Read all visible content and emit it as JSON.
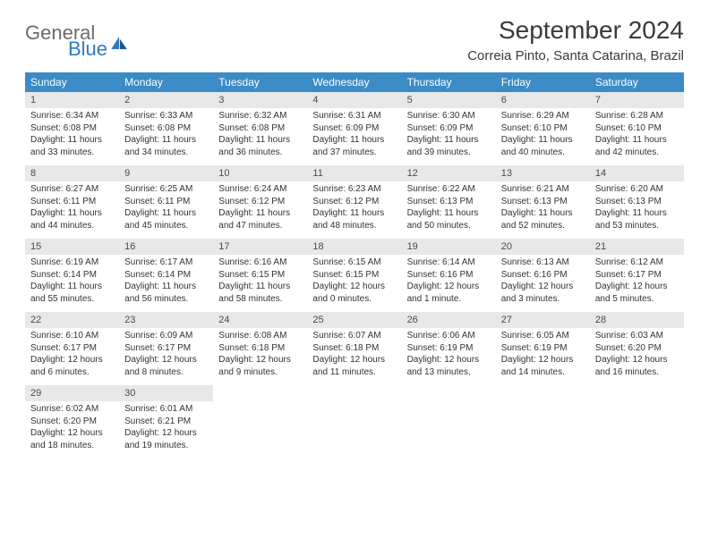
{
  "logo": {
    "word1": "General",
    "word2": "Blue"
  },
  "title": "September 2024",
  "location": "Correia Pinto, Santa Catarina, Brazil",
  "colors": {
    "header_bg": "#3b8bc6",
    "header_text": "#ffffff",
    "daynum_bg": "#e8e8e8",
    "border": "#2d6ea3",
    "logo_gray": "#6b6b6b",
    "logo_blue": "#2d7cc0"
  },
  "dayNames": [
    "Sunday",
    "Monday",
    "Tuesday",
    "Wednesday",
    "Thursday",
    "Friday",
    "Saturday"
  ],
  "weeks": [
    [
      {
        "day": "1",
        "sunrise": "6:34 AM",
        "sunset": "6:08 PM",
        "dl_h": "11",
        "dl_m": "33"
      },
      {
        "day": "2",
        "sunrise": "6:33 AM",
        "sunset": "6:08 PM",
        "dl_h": "11",
        "dl_m": "34"
      },
      {
        "day": "3",
        "sunrise": "6:32 AM",
        "sunset": "6:08 PM",
        "dl_h": "11",
        "dl_m": "36"
      },
      {
        "day": "4",
        "sunrise": "6:31 AM",
        "sunset": "6:09 PM",
        "dl_h": "11",
        "dl_m": "37"
      },
      {
        "day": "5",
        "sunrise": "6:30 AM",
        "sunset": "6:09 PM",
        "dl_h": "11",
        "dl_m": "39"
      },
      {
        "day": "6",
        "sunrise": "6:29 AM",
        "sunset": "6:10 PM",
        "dl_h": "11",
        "dl_m": "40"
      },
      {
        "day": "7",
        "sunrise": "6:28 AM",
        "sunset": "6:10 PM",
        "dl_h": "11",
        "dl_m": "42"
      }
    ],
    [
      {
        "day": "8",
        "sunrise": "6:27 AM",
        "sunset": "6:11 PM",
        "dl_h": "11",
        "dl_m": "44"
      },
      {
        "day": "9",
        "sunrise": "6:25 AM",
        "sunset": "6:11 PM",
        "dl_h": "11",
        "dl_m": "45"
      },
      {
        "day": "10",
        "sunrise": "6:24 AM",
        "sunset": "6:12 PM",
        "dl_h": "11",
        "dl_m": "47"
      },
      {
        "day": "11",
        "sunrise": "6:23 AM",
        "sunset": "6:12 PM",
        "dl_h": "11",
        "dl_m": "48"
      },
      {
        "day": "12",
        "sunrise": "6:22 AM",
        "sunset": "6:13 PM",
        "dl_h": "11",
        "dl_m": "50"
      },
      {
        "day": "13",
        "sunrise": "6:21 AM",
        "sunset": "6:13 PM",
        "dl_h": "11",
        "dl_m": "52"
      },
      {
        "day": "14",
        "sunrise": "6:20 AM",
        "sunset": "6:13 PM",
        "dl_h": "11",
        "dl_m": "53"
      }
    ],
    [
      {
        "day": "15",
        "sunrise": "6:19 AM",
        "sunset": "6:14 PM",
        "dl_h": "11",
        "dl_m": "55"
      },
      {
        "day": "16",
        "sunrise": "6:17 AM",
        "sunset": "6:14 PM",
        "dl_h": "11",
        "dl_m": "56"
      },
      {
        "day": "17",
        "sunrise": "6:16 AM",
        "sunset": "6:15 PM",
        "dl_h": "11",
        "dl_m": "58"
      },
      {
        "day": "18",
        "sunrise": "6:15 AM",
        "sunset": "6:15 PM",
        "dl_h": "12",
        "dl_m": "0"
      },
      {
        "day": "19",
        "sunrise": "6:14 AM",
        "sunset": "6:16 PM",
        "dl_h": "12",
        "dl_m": "1"
      },
      {
        "day": "20",
        "sunrise": "6:13 AM",
        "sunset": "6:16 PM",
        "dl_h": "12",
        "dl_m": "3"
      },
      {
        "day": "21",
        "sunrise": "6:12 AM",
        "sunset": "6:17 PM",
        "dl_h": "12",
        "dl_m": "5"
      }
    ],
    [
      {
        "day": "22",
        "sunrise": "6:10 AM",
        "sunset": "6:17 PM",
        "dl_h": "12",
        "dl_m": "6"
      },
      {
        "day": "23",
        "sunrise": "6:09 AM",
        "sunset": "6:17 PM",
        "dl_h": "12",
        "dl_m": "8"
      },
      {
        "day": "24",
        "sunrise": "6:08 AM",
        "sunset": "6:18 PM",
        "dl_h": "12",
        "dl_m": "9"
      },
      {
        "day": "25",
        "sunrise": "6:07 AM",
        "sunset": "6:18 PM",
        "dl_h": "12",
        "dl_m": "11"
      },
      {
        "day": "26",
        "sunrise": "6:06 AM",
        "sunset": "6:19 PM",
        "dl_h": "12",
        "dl_m": "13"
      },
      {
        "day": "27",
        "sunrise": "6:05 AM",
        "sunset": "6:19 PM",
        "dl_h": "12",
        "dl_m": "14"
      },
      {
        "day": "28",
        "sunrise": "6:03 AM",
        "sunset": "6:20 PM",
        "dl_h": "12",
        "dl_m": "16"
      }
    ],
    [
      {
        "day": "29",
        "sunrise": "6:02 AM",
        "sunset": "6:20 PM",
        "dl_h": "12",
        "dl_m": "18"
      },
      {
        "day": "30",
        "sunrise": "6:01 AM",
        "sunset": "6:21 PM",
        "dl_h": "12",
        "dl_m": "19"
      },
      null,
      null,
      null,
      null,
      null
    ]
  ],
  "labels": {
    "sunrise": "Sunrise:",
    "sunset": "Sunset:",
    "daylight": "Daylight:",
    "hours": "hours",
    "and": "and",
    "minute": "minute.",
    "minutes": "minutes."
  }
}
